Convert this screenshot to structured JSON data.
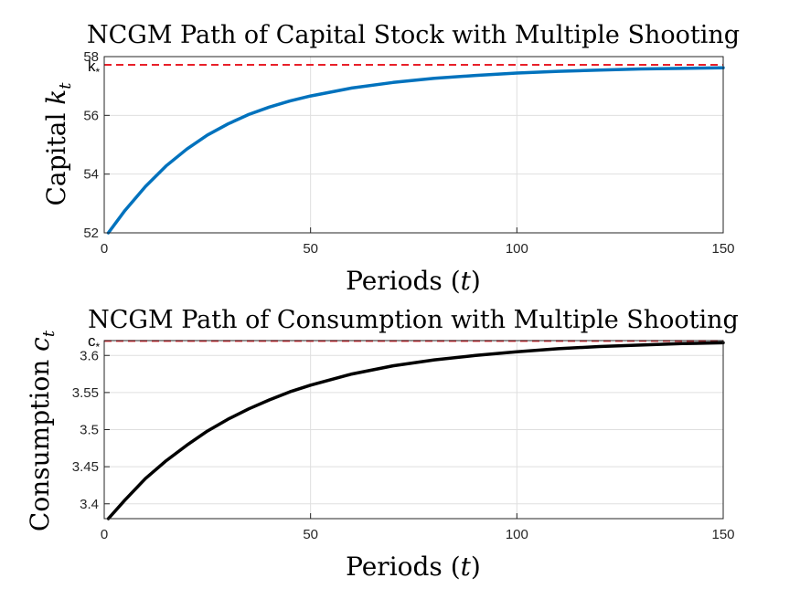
{
  "chart_data": [
    {
      "type": "line",
      "title": "NCGM Path of Capital Stock with Multiple Shooting",
      "xlabel_main": "Periods (",
      "xlabel_var": "t",
      "xlabel_close": ")",
      "ylabel_main": "Capital ",
      "ylabel_var": "k",
      "ylabel_sub": "t",
      "xlim": [
        0,
        150
      ],
      "ylim": [
        52,
        58
      ],
      "xticks": [
        0,
        50,
        100,
        150
      ],
      "yticks": [
        52,
        54,
        56,
        58
      ],
      "xtick_labels": [
        "0",
        "50",
        "100",
        "150"
      ],
      "ytick_labels": [
        "52",
        "54",
        "56",
        "58"
      ],
      "grid": true,
      "ref_label_main": "k",
      "ref_label_sub": "*",
      "ref_value": 57.72,
      "ref_color": "#e8202a",
      "series": [
        {
          "color": "#0072bd",
          "x": [
            1,
            5,
            10,
            15,
            20,
            25,
            30,
            35,
            40,
            45,
            50,
            60,
            70,
            80,
            90,
            100,
            110,
            120,
            130,
            140,
            150
          ],
          "y": [
            52.0,
            52.76,
            53.58,
            54.28,
            54.85,
            55.33,
            55.71,
            56.03,
            56.28,
            56.49,
            56.66,
            56.93,
            57.12,
            57.26,
            57.36,
            57.44,
            57.5,
            57.54,
            57.58,
            57.6,
            57.62
          ]
        }
      ]
    },
    {
      "type": "line",
      "title": "NCGM Path of Consumption with Multiple Shooting",
      "xlabel_main": "Periods (",
      "xlabel_var": "t",
      "xlabel_close": ")",
      "ylabel_main": "Consumption ",
      "ylabel_var": "c",
      "ylabel_sub": "t",
      "xlim": [
        0,
        150
      ],
      "ylim": [
        3.38,
        3.62
      ],
      "xticks": [
        0,
        50,
        100,
        150
      ],
      "yticks": [
        3.4,
        3.45,
        3.5,
        3.55,
        3.6
      ],
      "xtick_labels": [
        "0",
        "50",
        "100",
        "150"
      ],
      "ytick_labels": [
        "3.4",
        "3.45",
        "3.5",
        "3.55",
        "3.6"
      ],
      "grid": true,
      "ref_label_main": "c",
      "ref_label_sub": "*",
      "ref_value": 3.6195,
      "ref_color": "#e8202a",
      "series": [
        {
          "color": "#000000",
          "x": [
            1,
            5,
            10,
            15,
            20,
            25,
            30,
            35,
            40,
            45,
            50,
            60,
            70,
            80,
            90,
            100,
            110,
            120,
            130,
            140,
            150
          ],
          "y": [
            3.38,
            3.405,
            3.434,
            3.458,
            3.479,
            3.498,
            3.514,
            3.528,
            3.54,
            3.551,
            3.56,
            3.575,
            3.586,
            3.594,
            3.6,
            3.605,
            3.609,
            3.612,
            3.614,
            3.616,
            3.617
          ]
        }
      ]
    }
  ]
}
